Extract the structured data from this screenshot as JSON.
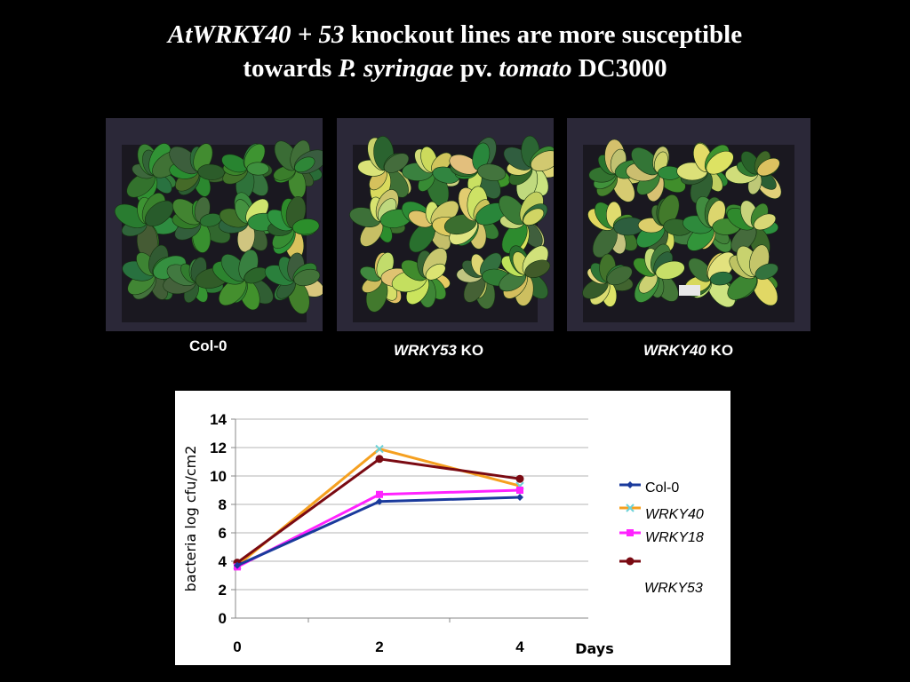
{
  "slide": {
    "title_parts": [
      {
        "text": "AtWRKY40 + 53",
        "italic": true
      },
      {
        "text": " knockout lines are more susceptible",
        "italic": false
      },
      {
        "text": "\n",
        "italic": false
      },
      {
        "text": "towards ",
        "italic": false
      },
      {
        "text": "P. syringae",
        "italic": true
      },
      {
        "text": " pv. ",
        "italic": false
      },
      {
        "text": "tomato",
        "italic": true
      },
      {
        "text": " DC3000",
        "italic": false
      }
    ]
  },
  "photos": [
    {
      "caption_italic": "",
      "caption_plain": "Col-0",
      "yellowing": 0.05
    },
    {
      "caption_italic": "WRKY53",
      "caption_plain": " KO",
      "yellowing": 0.55
    },
    {
      "caption_italic": "WRKY40",
      "caption_plain": " KO",
      "yellowing": 0.45
    }
  ],
  "chart_data": {
    "type": "line",
    "x": [
      0,
      2,
      4
    ],
    "xlabel": "Days",
    "ylabel": "bacteria   log cfu/cm2",
    "ylim": [
      0,
      14
    ],
    "yticks": [
      0,
      2,
      4,
      6,
      8,
      10,
      12,
      14
    ],
    "xticks": [
      0,
      2,
      4
    ],
    "grid": true,
    "legend_position": "right",
    "series": [
      {
        "name": "Col-0",
        "italic": false,
        "color": "#1a3a9c",
        "marker": "diamond",
        "values": [
          3.7,
          8.2,
          8.5
        ]
      },
      {
        "name": "WRKY40",
        "italic": true,
        "color": "#f5a020",
        "marker": "x",
        "marker_color": "#6dd3d8",
        "values": [
          3.7,
          11.9,
          9.3
        ]
      },
      {
        "name": "WRKY18",
        "italic": true,
        "color": "#ff22ff",
        "marker": "square",
        "values": [
          3.6,
          8.7,
          9.0
        ]
      },
      {
        "name": "WRKY53",
        "italic": true,
        "color": "#7a0a12",
        "marker": "circle",
        "values": [
          3.9,
          11.2,
          9.8
        ]
      }
    ]
  }
}
